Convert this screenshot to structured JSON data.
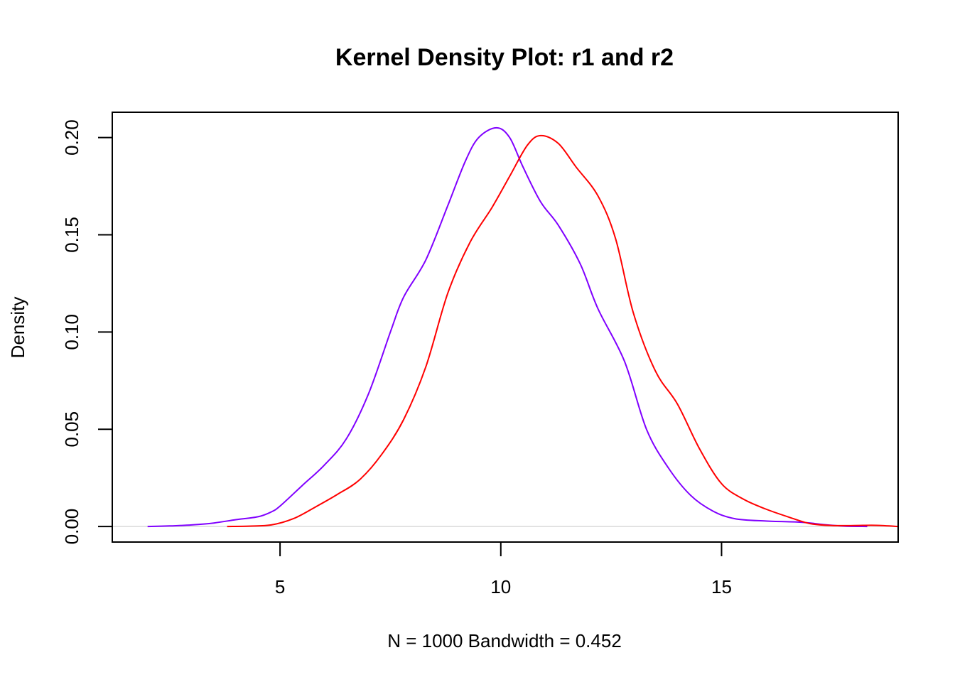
{
  "chart_data": {
    "type": "line",
    "title": "Kernel Density Plot: r1 and r2",
    "xlabel": "N = 1000   Bandwidth = 0.452",
    "ylabel": "Density",
    "xlim": [
      1.2,
      19.0
    ],
    "ylim": [
      -0.008,
      0.213
    ],
    "x_ticks": [
      5,
      10,
      15
    ],
    "x_tick_labels": [
      "5",
      "10",
      "15"
    ],
    "y_ticks": [
      0.0,
      0.05,
      0.1,
      0.15,
      0.2
    ],
    "y_tick_labels": [
      "0.00",
      "0.05",
      "0.10",
      "0.15",
      "0.20"
    ],
    "baseline": 0.0,
    "grid": false,
    "legend": "none",
    "series": [
      {
        "color": "#8000ff",
        "points": [
          [
            2.0,
            0.0
          ],
          [
            2.5,
            0.0003
          ],
          [
            3.0,
            0.0008
          ],
          [
            3.5,
            0.0018
          ],
          [
            4.0,
            0.0035
          ],
          [
            4.5,
            0.005
          ],
          [
            4.8,
            0.0075
          ],
          [
            5.0,
            0.0105
          ],
          [
            5.5,
            0.021
          ],
          [
            6.0,
            0.0315
          ],
          [
            6.5,
            0.045
          ],
          [
            7.0,
            0.068
          ],
          [
            7.5,
            0.1
          ],
          [
            7.8,
            0.118
          ],
          [
            8.3,
            0.137
          ],
          [
            8.8,
            0.165
          ],
          [
            9.2,
            0.188
          ],
          [
            9.5,
            0.2
          ],
          [
            9.9,
            0.205
          ],
          [
            10.2,
            0.2
          ],
          [
            10.5,
            0.185
          ],
          [
            10.9,
            0.167
          ],
          [
            11.3,
            0.155
          ],
          [
            11.8,
            0.135
          ],
          [
            12.2,
            0.112
          ],
          [
            12.8,
            0.085
          ],
          [
            13.3,
            0.05
          ],
          [
            13.8,
            0.03
          ],
          [
            14.3,
            0.016
          ],
          [
            14.8,
            0.008
          ],
          [
            15.3,
            0.004
          ],
          [
            16.0,
            0.0028
          ],
          [
            16.8,
            0.0022
          ],
          [
            17.3,
            0.001
          ],
          [
            17.8,
            0.0002
          ],
          [
            18.3,
            0.0
          ]
        ]
      },
      {
        "color": "#ff0000",
        "points": [
          [
            3.8,
            0.0
          ],
          [
            4.3,
            0.0002
          ],
          [
            4.8,
            0.0008
          ],
          [
            5.3,
            0.004
          ],
          [
            5.8,
            0.01
          ],
          [
            6.3,
            0.0165
          ],
          [
            6.8,
            0.024
          ],
          [
            7.3,
            0.037
          ],
          [
            7.8,
            0.055
          ],
          [
            8.3,
            0.082
          ],
          [
            8.8,
            0.12
          ],
          [
            9.3,
            0.146
          ],
          [
            9.8,
            0.164
          ],
          [
            10.2,
            0.18
          ],
          [
            10.6,
            0.196
          ],
          [
            10.9,
            0.201
          ],
          [
            11.3,
            0.197
          ],
          [
            11.7,
            0.185
          ],
          [
            12.2,
            0.17
          ],
          [
            12.6,
            0.148
          ],
          [
            13.0,
            0.11
          ],
          [
            13.5,
            0.08
          ],
          [
            14.0,
            0.063
          ],
          [
            14.5,
            0.04
          ],
          [
            15.0,
            0.022
          ],
          [
            15.5,
            0.014
          ],
          [
            16.0,
            0.009
          ],
          [
            16.5,
            0.005
          ],
          [
            17.0,
            0.0015
          ],
          [
            17.5,
            0.0005
          ],
          [
            18.0,
            0.0005
          ],
          [
            18.5,
            0.0006
          ],
          [
            19.0,
            0.0
          ]
        ]
      }
    ]
  }
}
